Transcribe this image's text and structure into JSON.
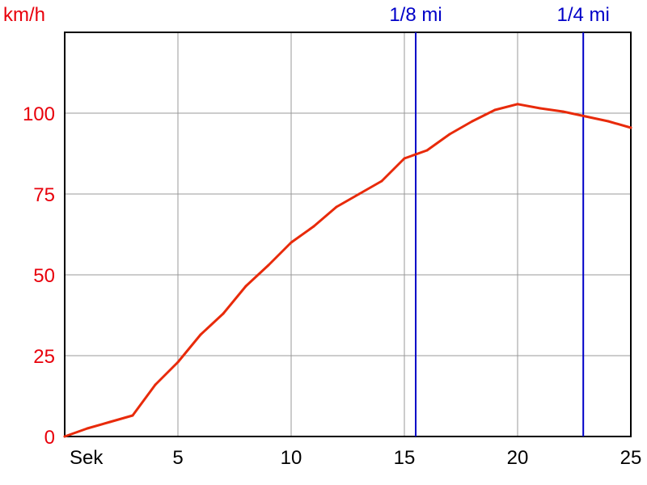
{
  "chart_data": {
    "type": "line",
    "y_unit_label": "km/h",
    "x_unit_label": "Sek",
    "xlim": [
      0,
      25
    ],
    "ylim": [
      0,
      125
    ],
    "x_ticks": [
      5,
      10,
      15,
      20,
      25
    ],
    "y_ticks": [
      0,
      25,
      50,
      75,
      100
    ],
    "grid": true,
    "series": [
      {
        "color": "#e82a0a",
        "x": [
          0,
          1,
          2,
          3,
          4,
          5,
          6,
          7,
          8,
          9,
          10,
          11,
          12,
          13,
          14,
          15,
          16,
          17,
          18,
          19,
          20,
          21,
          22,
          23,
          24,
          25
        ],
        "y": [
          0,
          2.5,
          4.5,
          6.5,
          16,
          23,
          31.5,
          38,
          46.5,
          53,
          60,
          65,
          71,
          75,
          79,
          86,
          88.5,
          93.5,
          97.5,
          101,
          102.8,
          101.5,
          100.5,
          99,
          97.5,
          95.5
        ]
      }
    ],
    "markers": [
      {
        "label": "1/8 mi",
        "x": 15.5,
        "color": "#0000c8"
      },
      {
        "label": "1/4 mi",
        "x": 22.9,
        "color": "#0000c8"
      }
    ]
  }
}
